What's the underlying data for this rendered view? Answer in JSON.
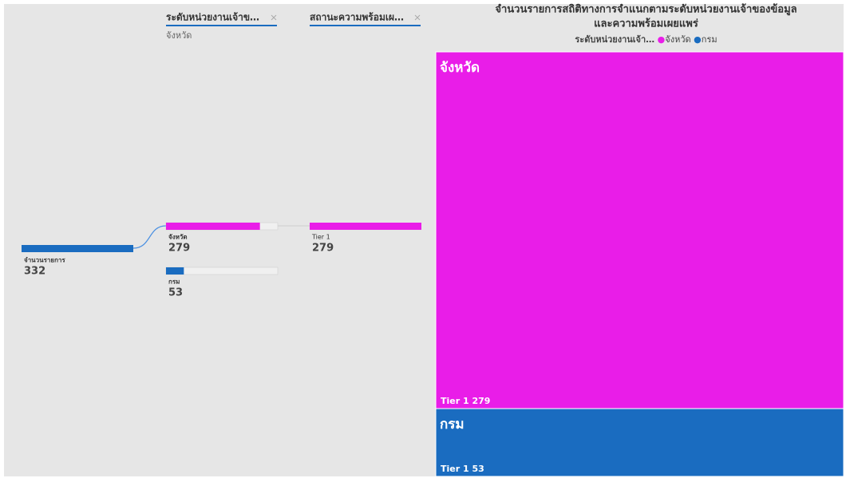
{
  "chart_data": [
    {
      "type": "decomposition-tree",
      "levels": [
        {
          "title": "ระดับหน่วยงานเจ้าข…",
          "selected": "จังหวัด"
        },
        {
          "title": "สถานะความพร้อมเผ…"
        }
      ],
      "root": {
        "name": "จำนวนรายการ",
        "value": 332,
        "color": "#1a6cc0"
      },
      "nodes": [
        {
          "name": "จังหวัด",
          "value": 279,
          "color": "#e91de8",
          "children": [
            {
              "name": "Tier 1",
              "value": 279
            }
          ]
        },
        {
          "name": "กรม",
          "value": 53,
          "color": "#1a6cc0"
        }
      ]
    },
    {
      "type": "treemap",
      "title": [
        "จำนวนรายการสถิติทางการจำแนกตามระดับหน่วยงานเจ้าของข้อมูล",
        "และความพร้อมเผยแพร่"
      ],
      "legend_title": "ระดับหน่วยงานเจ้า…",
      "series": [
        {
          "name": "จังหวัด",
          "color": "#e91de8",
          "children": [
            {
              "name": "Tier 1",
              "value": 279
            }
          ]
        },
        {
          "name": "กรม",
          "color": "#1a6cc0",
          "children": [
            {
              "name": "Tier 1",
              "value": 53
            }
          ]
        }
      ]
    }
  ]
}
